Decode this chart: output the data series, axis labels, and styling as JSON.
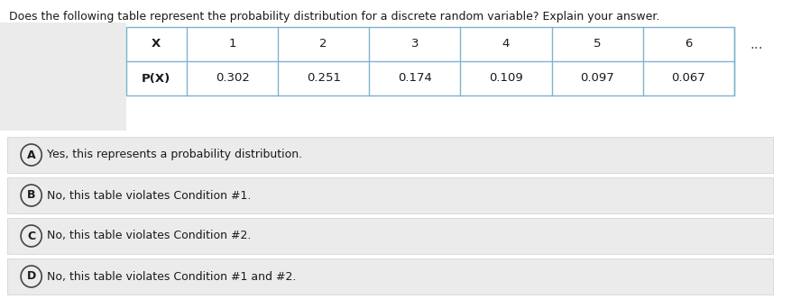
{
  "title": "Does the following table represent the probability distribution for a discrete random variable? Explain your answer.",
  "table_headers": [
    "X",
    "1",
    "2",
    "3",
    "4",
    "5",
    "6"
  ],
  "table_row_label": "P(X)",
  "table_values": [
    "0.302",
    "0.251",
    "0.174",
    "0.109",
    "0.097",
    "0.067"
  ],
  "ellipsis": "………",
  "options": [
    {
      "label": "A",
      "text": "Yes, this represents a probability distribution."
    },
    {
      "label": "B",
      "text": "No, this table violates Condition #1."
    },
    {
      "label": "C",
      "text": "No, this table violates Condition #2."
    },
    {
      "label": "D",
      "text": "No, this table violates Condition #1 and #2."
    }
  ],
  "bg_color": "#ffffff",
  "left_panel_color": "#ebebeb",
  "table_bg": "#ffffff",
  "table_border_color": "#7fb3cc",
  "option_bg": "#ebebeb",
  "option_border_color": "#d0d0d0",
  "text_color": "#1a1a1a",
  "title_fontsize": 9.0,
  "table_fontsize": 9.5,
  "option_fontsize": 9.0,
  "circle_color": "#444444",
  "ellipsis_color": "#555555"
}
